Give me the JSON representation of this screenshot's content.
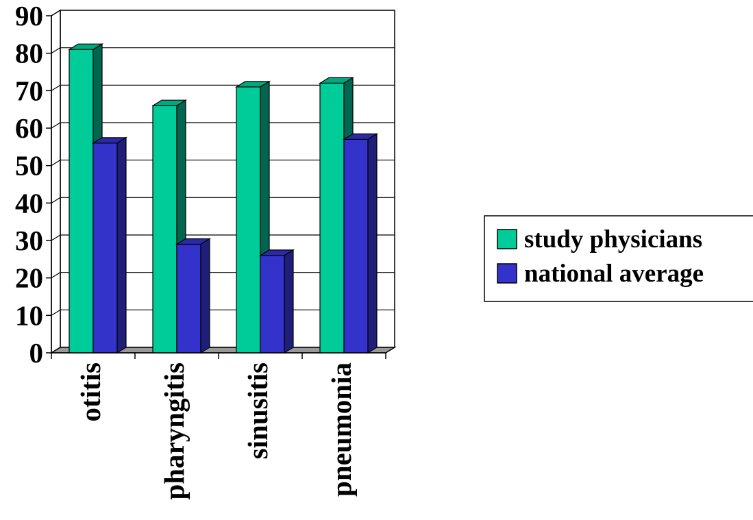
{
  "chart_data": {
    "type": "bar",
    "categories": [
      "otitis",
      "pharyngitis",
      "sinusitis",
      "pneumonia"
    ],
    "series": [
      {
        "name": "study physicians",
        "values": [
          81,
          66,
          71,
          72
        ]
      },
      {
        "name": "national average",
        "values": [
          56,
          29,
          26,
          57
        ]
      }
    ],
    "yticks": [
      "0",
      "10",
      "20",
      "30",
      "40",
      "50",
      "60",
      "70",
      "80",
      "90"
    ],
    "ylim": [
      0,
      90
    ],
    "grid": true,
    "legend_position": "right",
    "colors": {
      "series": [
        "#00CC99",
        "#3333CC"
      ],
      "series_top": [
        "#00A87E",
        "#2A2AA8"
      ],
      "series_side": [
        "#006650",
        "#1F1F7A"
      ],
      "floor": "#999999",
      "grid": "#000000"
    }
  }
}
